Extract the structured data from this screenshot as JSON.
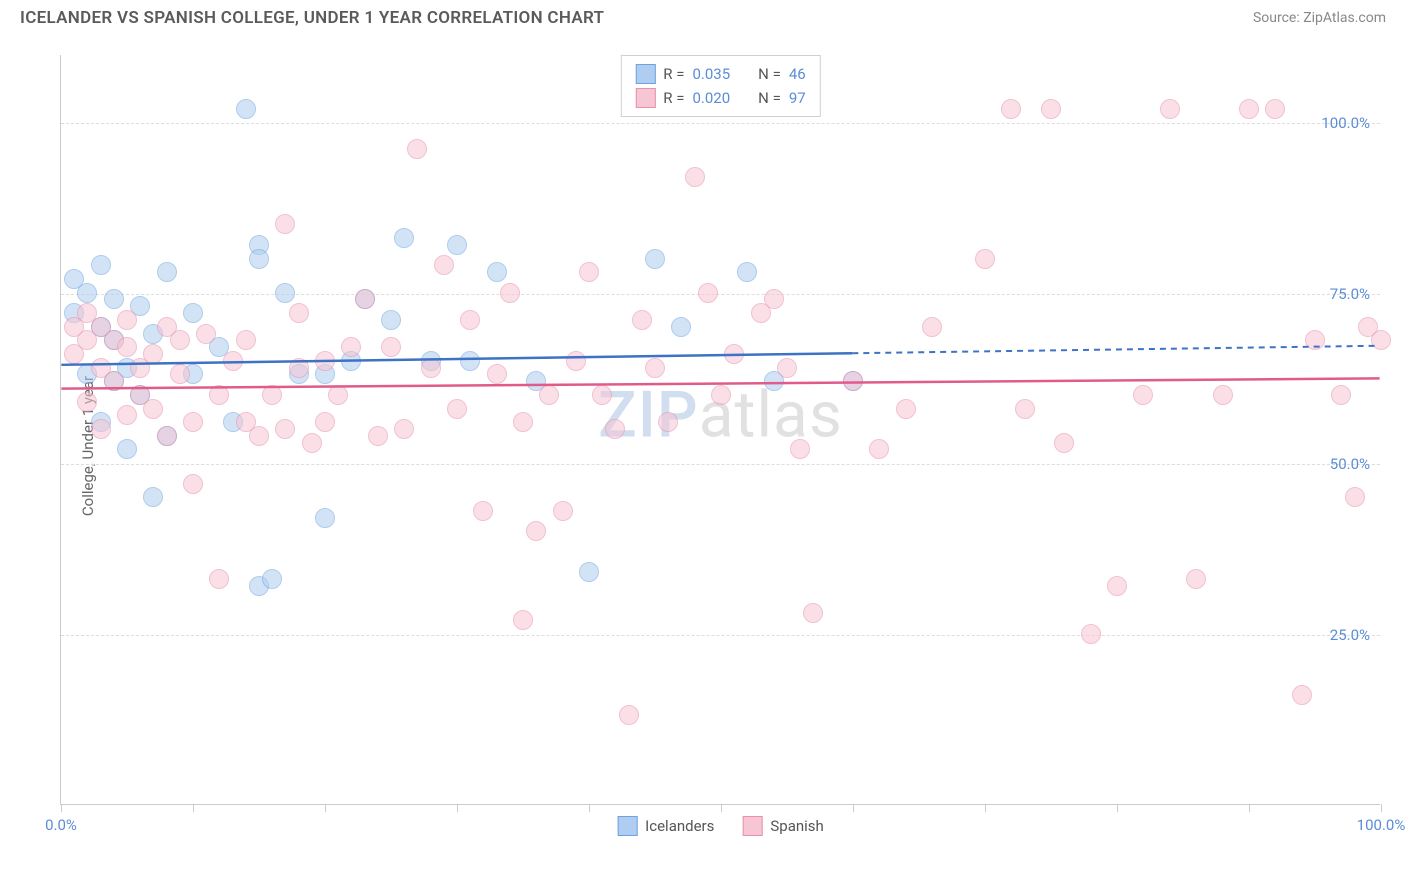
{
  "title": "ICELANDER VS SPANISH COLLEGE, UNDER 1 YEAR CORRELATION CHART",
  "source_label": "Source: ZipAtlas.com",
  "y_axis_label": "College, Under 1 year",
  "watermark": {
    "zip": "ZIP",
    "atlas": "atlas"
  },
  "chart": {
    "type": "scatter",
    "background_color": "#ffffff",
    "grid_color": "#dddddd",
    "axis_color": "#cccccc",
    "tick_label_color": "#5b8dd6",
    "axis_label_color": "#666666",
    "xlim": [
      0,
      100
    ],
    "ylim": [
      0,
      110
    ],
    "x_ticks": [
      0,
      10,
      20,
      30,
      40,
      50,
      60,
      70,
      80,
      90,
      100
    ],
    "x_tick_labels": {
      "0": "0.0%",
      "100": "100.0%"
    },
    "y_gridlines": [
      25,
      50,
      75,
      100
    ],
    "y_tick_labels": {
      "25": "25.0%",
      "50": "50.0%",
      "75": "75.0%",
      "100": "100.0%"
    },
    "point_radius": 10,
    "point_opacity": 0.55,
    "series": [
      {
        "name": "Icelanders",
        "fill_color": "#aecdf0",
        "stroke_color": "#6fa3de",
        "trend_color": "#3d72c4",
        "R": "0.035",
        "N": "46",
        "trend": {
          "x1": 0,
          "y1": 64.5,
          "x2": 60,
          "y2": 66.2,
          "dash_after_x": 60,
          "x_end": 100,
          "y_end": 67.3
        },
        "points": [
          [
            1,
            77
          ],
          [
            1,
            72
          ],
          [
            2,
            75
          ],
          [
            2,
            63
          ],
          [
            3,
            79
          ],
          [
            3,
            70
          ],
          [
            3,
            56
          ],
          [
            4,
            68
          ],
          [
            4,
            62
          ],
          [
            4,
            74
          ],
          [
            5,
            64
          ],
          [
            5,
            52
          ],
          [
            6,
            73
          ],
          [
            6,
            60
          ],
          [
            7,
            45
          ],
          [
            7,
            69
          ],
          [
            8,
            78
          ],
          [
            8,
            54
          ],
          [
            10,
            63
          ],
          [
            10,
            72
          ],
          [
            12,
            67
          ],
          [
            13,
            56
          ],
          [
            14,
            102
          ],
          [
            15,
            82
          ],
          [
            15,
            32
          ],
          [
            15,
            80
          ],
          [
            16,
            33
          ],
          [
            17,
            75
          ],
          [
            18,
            63
          ],
          [
            20,
            42
          ],
          [
            20,
            63
          ],
          [
            22,
            65
          ],
          [
            23,
            74
          ],
          [
            25,
            71
          ],
          [
            26,
            83
          ],
          [
            28,
            65
          ],
          [
            30,
            82
          ],
          [
            31,
            65
          ],
          [
            33,
            78
          ],
          [
            36,
            62
          ],
          [
            40,
            34
          ],
          [
            45,
            80
          ],
          [
            47,
            70
          ],
          [
            52,
            78
          ],
          [
            54,
            62
          ],
          [
            60,
            62
          ]
        ]
      },
      {
        "name": "Spanish",
        "fill_color": "#f6c6d4",
        "stroke_color": "#e890ac",
        "trend_color": "#e05b8a",
        "R": "0.020",
        "N": "97",
        "trend": {
          "x1": 0,
          "y1": 61,
          "x2": 100,
          "y2": 62.5
        },
        "points": [
          [
            1,
            70
          ],
          [
            1,
            66
          ],
          [
            2,
            68
          ],
          [
            2,
            72
          ],
          [
            2,
            59
          ],
          [
            3,
            70
          ],
          [
            3,
            64
          ],
          [
            3,
            55
          ],
          [
            4,
            68
          ],
          [
            4,
            62
          ],
          [
            5,
            67
          ],
          [
            5,
            71
          ],
          [
            5,
            57
          ],
          [
            6,
            64
          ],
          [
            6,
            60
          ],
          [
            7,
            58
          ],
          [
            7,
            66
          ],
          [
            8,
            70
          ],
          [
            8,
            54
          ],
          [
            9,
            63
          ],
          [
            9,
            68
          ],
          [
            10,
            47
          ],
          [
            10,
            56
          ],
          [
            11,
            69
          ],
          [
            12,
            33
          ],
          [
            12,
            60
          ],
          [
            13,
            65
          ],
          [
            14,
            56
          ],
          [
            14,
            68
          ],
          [
            15,
            54
          ],
          [
            16,
            60
          ],
          [
            17,
            85
          ],
          [
            17,
            55
          ],
          [
            18,
            64
          ],
          [
            18,
            72
          ],
          [
            19,
            53
          ],
          [
            20,
            65
          ],
          [
            20,
            56
          ],
          [
            21,
            60
          ],
          [
            22,
            67
          ],
          [
            23,
            74
          ],
          [
            24,
            54
          ],
          [
            25,
            67
          ],
          [
            26,
            55
          ],
          [
            27,
            96
          ],
          [
            28,
            64
          ],
          [
            29,
            79
          ],
          [
            30,
            58
          ],
          [
            31,
            71
          ],
          [
            32,
            43
          ],
          [
            33,
            63
          ],
          [
            34,
            75
          ],
          [
            35,
            27
          ],
          [
            35,
            56
          ],
          [
            36,
            40
          ],
          [
            37,
            60
          ],
          [
            38,
            43
          ],
          [
            39,
            65
          ],
          [
            40,
            78
          ],
          [
            41,
            60
          ],
          [
            42,
            55
          ],
          [
            43,
            13
          ],
          [
            44,
            71
          ],
          [
            45,
            64
          ],
          [
            46,
            56
          ],
          [
            48,
            92
          ],
          [
            49,
            75
          ],
          [
            50,
            60
          ],
          [
            51,
            66
          ],
          [
            53,
            72
          ],
          [
            54,
            74
          ],
          [
            55,
            64
          ],
          [
            56,
            52
          ],
          [
            57,
            28
          ],
          [
            60,
            62
          ],
          [
            62,
            52
          ],
          [
            64,
            58
          ],
          [
            66,
            70
          ],
          [
            70,
            80
          ],
          [
            72,
            102
          ],
          [
            73,
            58
          ],
          [
            75,
            102
          ],
          [
            76,
            53
          ],
          [
            78,
            25
          ],
          [
            80,
            32
          ],
          [
            82,
            60
          ],
          [
            84,
            102
          ],
          [
            86,
            33
          ],
          [
            88,
            60
          ],
          [
            90,
            102
          ],
          [
            92,
            102
          ],
          [
            94,
            16
          ],
          [
            95,
            68
          ],
          [
            97,
            60
          ],
          [
            98,
            45
          ],
          [
            99,
            70
          ],
          [
            100,
            68
          ]
        ]
      }
    ]
  },
  "legend": {
    "r_label": "R =",
    "n_label": "N ="
  },
  "bottom_legend": [
    "Icelanders",
    "Spanish"
  ]
}
